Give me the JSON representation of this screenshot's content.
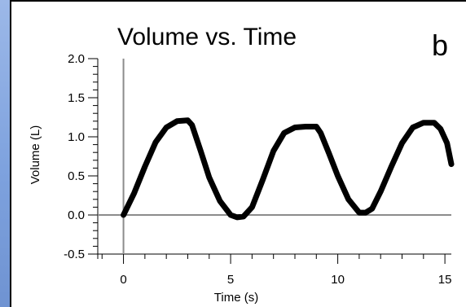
{
  "chart_data": {
    "type": "line",
    "title": "Volume vs. Time",
    "panel_label": "b",
    "xlabel": "Time (s)",
    "ylabel": "Volume (L)",
    "xlim": [
      -1.2,
      15.3
    ],
    "ylim": [
      -0.5,
      2.0
    ],
    "x_ticks": [
      "0",
      "5",
      "10",
      "15"
    ],
    "y_ticks": [
      "-0.5",
      "0.0",
      "0.5",
      "1.0",
      "1.5",
      "2.0"
    ],
    "grid": false,
    "series": [
      {
        "color": "#000000",
        "x": [
          0.0,
          0.5,
          1.0,
          1.5,
          2.0,
          2.5,
          3.0,
          3.2,
          3.6,
          4.0,
          4.5,
          5.0,
          5.3,
          5.6,
          6.0,
          6.5,
          7.0,
          7.5,
          8.0,
          8.5,
          9.0,
          9.2,
          9.6,
          10.0,
          10.5,
          11.0,
          11.3,
          11.6,
          12.0,
          12.5,
          13.0,
          13.5,
          14.0,
          14.5,
          14.8,
          15.1,
          15.3
        ],
        "y": [
          0.0,
          0.28,
          0.62,
          0.93,
          1.12,
          1.2,
          1.21,
          1.15,
          0.82,
          0.48,
          0.18,
          0.0,
          -0.03,
          -0.02,
          0.1,
          0.45,
          0.82,
          1.05,
          1.12,
          1.13,
          1.13,
          1.05,
          0.78,
          0.5,
          0.2,
          0.03,
          0.03,
          0.08,
          0.3,
          0.62,
          0.92,
          1.12,
          1.18,
          1.18,
          1.1,
          0.92,
          0.65
        ]
      }
    ]
  }
}
